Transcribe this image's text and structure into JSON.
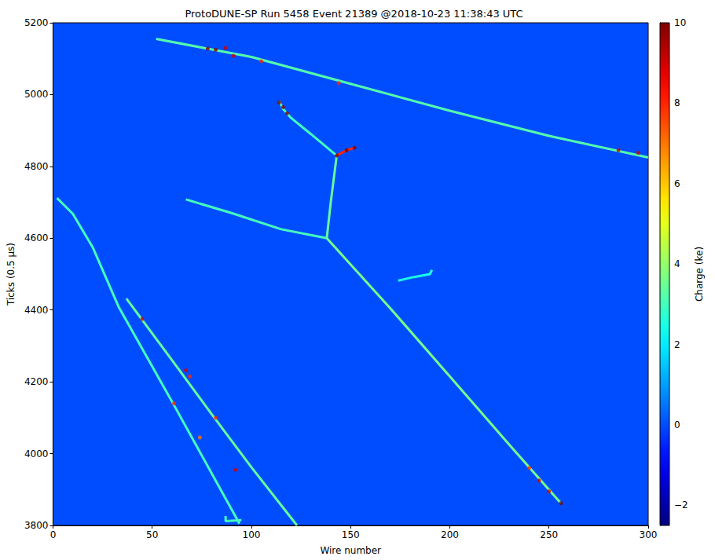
{
  "chart_data": {
    "type": "event_display",
    "title": "ProtoDUNE-SP Run 5458 Event 21389 @2018-10-23 11:38:43 UTC",
    "x_label": "Wire number",
    "y_label": "Ticks (0.5 μs)",
    "xlim": [
      0,
      300
    ],
    "xticks": [
      0,
      50,
      100,
      150,
      200,
      250,
      300
    ],
    "ylim": [
      3800,
      5200
    ],
    "yticks": [
      3800,
      4000,
      4200,
      4400,
      4600,
      4800,
      5000,
      5200
    ],
    "colorbar": {
      "label": "Charge (ke)",
      "range": [
        -2.5,
        10
      ],
      "ticks": [
        {
          "value": -2,
          "label": "−2"
        },
        0,
        2,
        4,
        6,
        8,
        10
      ]
    },
    "background_charge": 0,
    "tracks": [
      {
        "x": [
          52,
          100,
          150,
          200,
          250,
          300
        ],
        "y": [
          5155,
          5105,
          5030,
          4955,
          4885,
          4825
        ],
        "charge": 3.2
      },
      {
        "x": [
          2,
          10,
          20,
          33,
          61,
          80,
          94
        ],
        "y": [
          4712,
          4668,
          4575,
          4410,
          4135,
          3945,
          3805
        ],
        "charge": 3
      },
      {
        "x": [
          37,
          60,
          80,
          100,
          123
        ],
        "y": [
          4432,
          4260,
          4110,
          3962,
          3800
        ],
        "charge": 3.4
      },
      {
        "x": [
          87,
          87,
          95
        ],
        "y": [
          3826,
          3812,
          3815
        ],
        "charge": 3
      },
      {
        "x": [
          67,
          90,
          115,
          138
        ],
        "y": [
          4708,
          4670,
          4625,
          4600
        ],
        "charge": 3
      },
      {
        "x": [
          138,
          170,
          200,
          230,
          256
        ],
        "y": [
          4600,
          4405,
          4215,
          4025,
          3862
        ],
        "charge": 3.6
      },
      {
        "x": [
          138,
          140,
          143
        ],
        "y": [
          4600,
          4700,
          4830
        ],
        "charge": 3.4
      },
      {
        "x": [
          143,
          130,
          120,
          116,
          114
        ],
        "y": [
          4830,
          4890,
          4935,
          4960,
          4982
        ],
        "charge": 3
      },
      {
        "x": [
          143,
          148,
          152
        ],
        "y": [
          4830,
          4845,
          4852
        ],
        "charge": 8
      },
      {
        "x": [
          174,
          182,
          190,
          191
        ],
        "y": [
          4482,
          4492,
          4500,
          4512
        ],
        "charge": 2.5
      }
    ],
    "hits": {
      "x": [
        78,
        82,
        91,
        105,
        144,
        285,
        295,
        143,
        148,
        152,
        114,
        116,
        118,
        240,
        245,
        250,
        256,
        45,
        67,
        69,
        82,
        61,
        74,
        92,
        87
      ],
      "y": [
        5128,
        5125,
        5108,
        5093,
        5032,
        4845,
        4838,
        4830,
        4845,
        4852,
        4978,
        4965,
        4948,
        3960,
        3925,
        3895,
        3862,
        4375,
        4232,
        4215,
        4100,
        4140,
        4045,
        3955,
        5130
      ],
      "charge": [
        10,
        10,
        9,
        8,
        8,
        9,
        9,
        10,
        10,
        10,
        10,
        10,
        10,
        8,
        9,
        9,
        10,
        9,
        9,
        8,
        8,
        8,
        7,
        9,
        9
      ]
    }
  }
}
